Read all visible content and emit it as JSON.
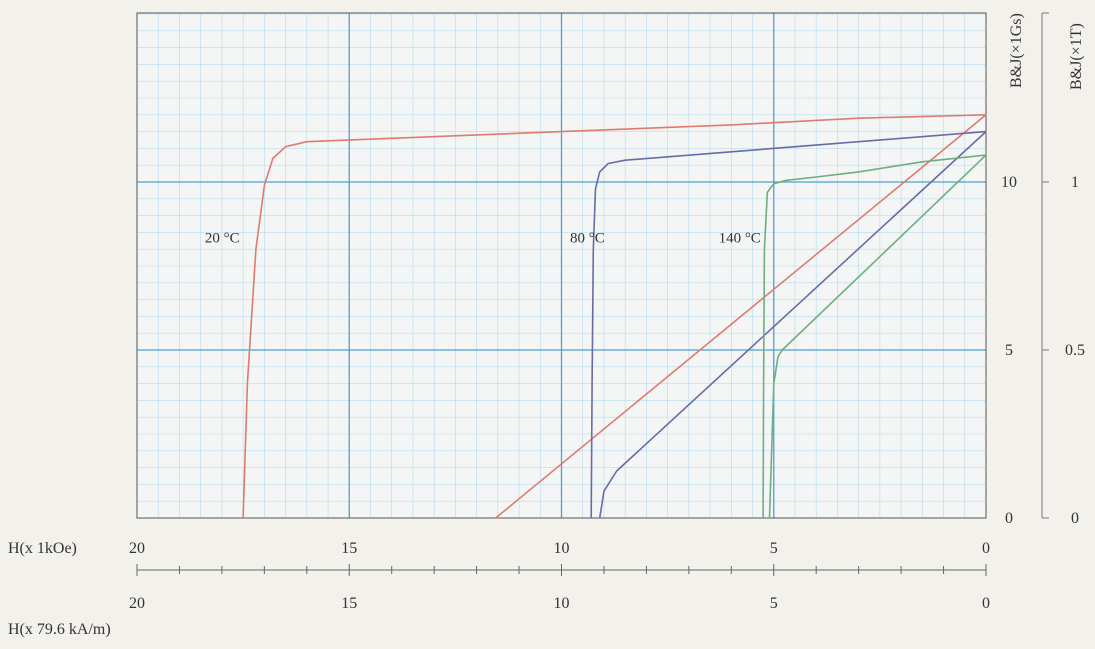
{
  "chart_data": {
    "type": "line",
    "title": "",
    "x_axis_top": {
      "label": "H(x 1kOe)",
      "ticks": [
        "20",
        "15",
        "10",
        "5",
        "0"
      ],
      "range": [
        20,
        0
      ]
    },
    "x_axis_bottom": {
      "label": "H(x 79.6 kA/m)",
      "ticks": [
        "20",
        "15",
        "10",
        "5",
        "0"
      ]
    },
    "y_axis_left": {
      "label": "B&J(×1Gs)",
      "ticks": [
        "0",
        "5",
        "10"
      ],
      "range": [
        0,
        10
      ]
    },
    "y_axis_right": {
      "label": "B&J(×1T)",
      "ticks": [
        "0",
        "0.5",
        "1"
      ],
      "range": [
        0,
        1
      ]
    },
    "grid": true,
    "series": [
      {
        "name": "20 °C",
        "color": "#e07a6e",
        "J": {
          "x": [
            17.5,
            17.4,
            17.2,
            17.0,
            16.8,
            16.5,
            16.0,
            14.0,
            10.0,
            6.0,
            3.0,
            0
          ],
          "y": [
            0,
            4.0,
            8.0,
            9.9,
            10.7,
            11.05,
            11.2,
            11.3,
            11.5,
            11.7,
            11.9,
            12.0
          ]
        },
        "B": {
          "x": [
            11.55,
            0
          ],
          "y": [
            0,
            12.0
          ]
        }
      },
      {
        "name": "80 °C",
        "color": "#6a6aa8",
        "J": {
          "x": [
            9.3,
            9.28,
            9.25,
            9.2,
            9.1,
            8.9,
            8.5,
            6.0,
            3.0,
            0
          ],
          "y": [
            0,
            4.0,
            8.0,
            9.8,
            10.3,
            10.55,
            10.65,
            10.9,
            11.2,
            11.5
          ]
        },
        "B": {
          "x": [
            9.1,
            9.0,
            8.7,
            0
          ],
          "y": [
            0,
            0.8,
            1.4,
            11.5
          ]
        }
      },
      {
        "name": "140 °C",
        "color": "#6fae7f",
        "J": {
          "x": [
            5.25,
            5.24,
            5.22,
            5.15,
            5.0,
            4.7,
            4.0,
            3.0,
            1.5,
            0
          ],
          "y": [
            0,
            4.0,
            8.0,
            9.7,
            9.95,
            10.05,
            10.15,
            10.3,
            10.6,
            10.8
          ]
        },
        "B": {
          "x": [
            5.1,
            5.0,
            4.9,
            4.8,
            0
          ],
          "y": [
            0,
            4.0,
            4.8,
            5.0,
            10.8
          ]
        }
      }
    ],
    "annotations": [
      {
        "text": "20 °C",
        "x": 18.4,
        "y": 8.2
      },
      {
        "text": "80 °C",
        "x": 9.8,
        "y": 8.2
      },
      {
        "text": "140 °C",
        "x": 6.3,
        "y": 8.2
      }
    ]
  }
}
